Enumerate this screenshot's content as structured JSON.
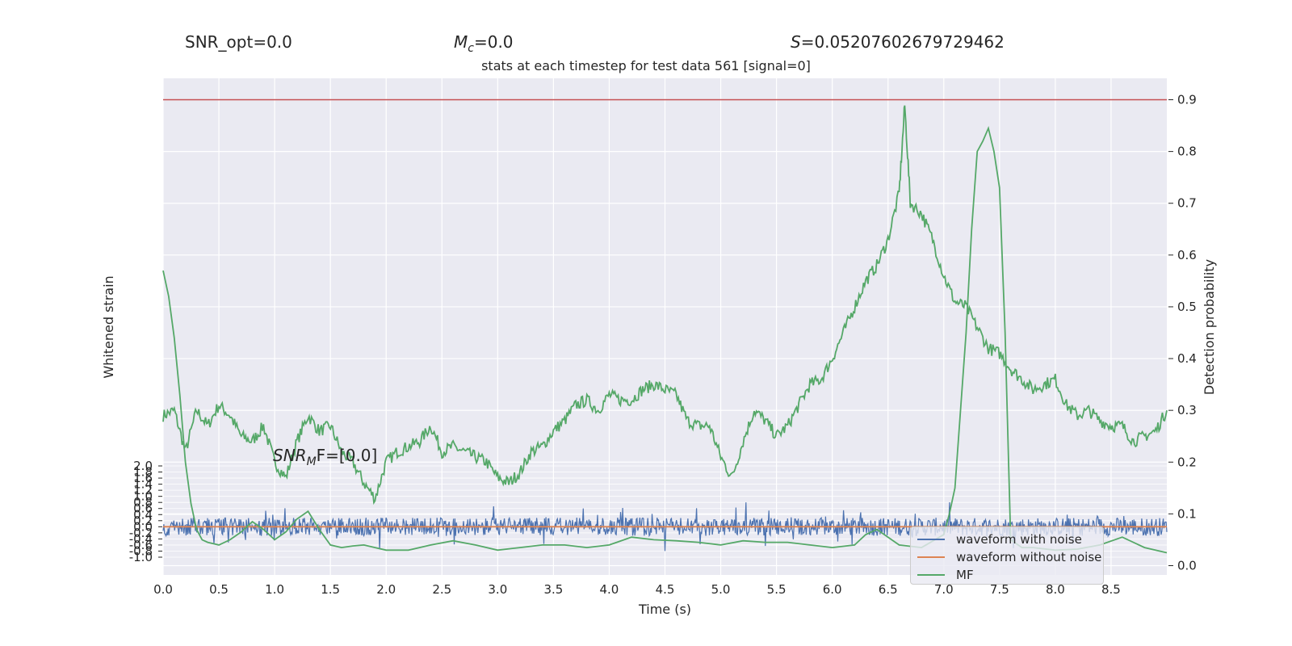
{
  "header": {
    "snr_opt": "SNR_opt=0.0",
    "mc_symbol": "M",
    "mc_sub": "c",
    "mc_value": "=0.0",
    "s_symbol": "S",
    "s_value": "=0.05207602679729462"
  },
  "chart_data": {
    "type": "line",
    "title": "stats at each timestep for test data 561 [signal=0]",
    "annotation": {
      "symbol": "SNR",
      "sub": "M",
      "rest": "F=[0.0]"
    },
    "xlabel": "Time (s)",
    "xlim": [
      0.0,
      9.0
    ],
    "xticks": [
      "0.0",
      "0.5",
      "1.0",
      "1.5",
      "2.0",
      "2.5",
      "3.0",
      "3.5",
      "4.0",
      "4.5",
      "5.0",
      "5.5",
      "6.0",
      "6.5",
      "7.0",
      "7.5",
      "8.0",
      "8.5"
    ],
    "left_axis": {
      "label": "Whitened strain",
      "ylim": [
        -1.0,
        2.0
      ],
      "ticks": [
        "2.0",
        "1.8",
        "1.6",
        "1.4",
        "1.2",
        "1.0",
        "0.8",
        "0.6",
        "0.4",
        "0.2",
        "0.0",
        "-0.2",
        "-0.4",
        "-0.6",
        "-0.8",
        "-1.0"
      ]
    },
    "right_axis": {
      "label": "Detection probability",
      "ylim": [
        0.0,
        0.9
      ],
      "ticks": [
        "0.9",
        "0.8",
        "0.7",
        "0.6",
        "0.5",
        "0.4",
        "0.3",
        "0.2",
        "0.1",
        "0.0"
      ]
    },
    "threshold": 0.9,
    "series": [
      {
        "name": "waveform with noise",
        "color": "#4c72b0",
        "axis": "left",
        "mean": 0.0,
        "amplitude": 0.3,
        "spikes": 0.6
      },
      {
        "name": "waveform without noise",
        "color": "#dd8452",
        "axis": "left",
        "constant": 0.0
      },
      {
        "name": "MF",
        "color": "#55a868",
        "axis": "right",
        "x": [
          0.0,
          0.05,
          0.1,
          0.15,
          0.2,
          0.25,
          0.3,
          0.35,
          0.4,
          0.5,
          0.6,
          0.7,
          0.8,
          0.9,
          1.0,
          1.1,
          1.2,
          1.3,
          1.4,
          1.5,
          1.6,
          1.7,
          1.8,
          1.9,
          2.0,
          2.2,
          2.4,
          2.6,
          2.8,
          3.0,
          3.2,
          3.4,
          3.6,
          3.8,
          4.0,
          4.2,
          4.4,
          4.6,
          4.8,
          5.0,
          5.2,
          5.4,
          5.6,
          5.8,
          6.0,
          6.2,
          6.3,
          6.4,
          6.5,
          6.6,
          6.8,
          7.0,
          7.05,
          7.1,
          7.2,
          7.25,
          7.3,
          7.35,
          7.4,
          7.45,
          7.5,
          7.55,
          7.6,
          7.7,
          7.8,
          8.0,
          8.2,
          8.4,
          8.6,
          8.8,
          9.0
        ],
        "y": [
          0.57,
          0.52,
          0.44,
          0.33,
          0.2,
          0.12,
          0.07,
          0.05,
          0.045,
          0.04,
          0.05,
          0.065,
          0.085,
          0.07,
          0.05,
          0.065,
          0.09,
          0.105,
          0.07,
          0.04,
          0.035,
          0.038,
          0.04,
          0.035,
          0.03,
          0.03,
          0.04,
          0.048,
          0.04,
          0.03,
          0.035,
          0.04,
          0.04,
          0.035,
          0.04,
          0.055,
          0.05,
          0.048,
          0.045,
          0.04,
          0.048,
          0.045,
          0.045,
          0.04,
          0.035,
          0.04,
          0.06,
          0.07,
          0.055,
          0.04,
          0.035,
          0.06,
          0.1,
          0.15,
          0.45,
          0.65,
          0.8,
          0.82,
          0.845,
          0.8,
          0.73,
          0.45,
          0.05,
          0.035,
          0.035,
          0.03,
          0.032,
          0.04,
          0.055,
          0.035,
          0.025
        ]
      },
      {
        "name": "detection probability",
        "color": "#55a868",
        "axis": "right",
        "x": [
          0.0,
          0.1,
          0.2,
          0.3,
          0.4,
          0.5,
          0.6,
          0.7,
          0.8,
          0.9,
          1.0,
          1.1,
          1.2,
          1.3,
          1.4,
          1.5,
          1.6,
          1.7,
          1.8,
          1.9,
          2.0,
          2.1,
          2.2,
          2.3,
          2.4,
          2.5,
          2.6,
          2.7,
          2.8,
          2.9,
          3.0,
          3.1,
          3.2,
          3.3,
          3.4,
          3.5,
          3.6,
          3.7,
          3.8,
          3.9,
          4.0,
          4.1,
          4.2,
          4.3,
          4.4,
          4.5,
          4.6,
          4.7,
          4.8,
          4.9,
          5.0,
          5.1,
          5.2,
          5.3,
          5.4,
          5.5,
          5.6,
          5.7,
          5.8,
          5.9,
          6.0,
          6.1,
          6.2,
          6.3,
          6.4,
          6.5,
          6.6,
          6.65,
          6.7,
          6.8,
          6.9,
          7.0,
          7.1,
          7.2,
          7.3,
          7.4,
          7.5,
          7.6,
          7.7,
          7.8,
          7.9,
          8.0,
          8.1,
          8.2,
          8.3,
          8.4,
          8.5,
          8.6,
          8.7,
          8.8,
          8.9,
          9.0
        ],
        "y": [
          0.29,
          0.3,
          0.22,
          0.3,
          0.27,
          0.31,
          0.29,
          0.25,
          0.24,
          0.27,
          0.2,
          0.17,
          0.24,
          0.29,
          0.26,
          0.27,
          0.22,
          0.2,
          0.16,
          0.13,
          0.2,
          0.22,
          0.23,
          0.24,
          0.27,
          0.22,
          0.23,
          0.22,
          0.21,
          0.2,
          0.17,
          0.16,
          0.18,
          0.22,
          0.23,
          0.26,
          0.28,
          0.31,
          0.32,
          0.3,
          0.33,
          0.32,
          0.32,
          0.34,
          0.35,
          0.34,
          0.33,
          0.28,
          0.27,
          0.27,
          0.21,
          0.17,
          0.24,
          0.3,
          0.28,
          0.25,
          0.27,
          0.31,
          0.35,
          0.36,
          0.4,
          0.45,
          0.5,
          0.55,
          0.58,
          0.63,
          0.72,
          0.89,
          0.7,
          0.68,
          0.63,
          0.56,
          0.51,
          0.5,
          0.46,
          0.42,
          0.41,
          0.38,
          0.36,
          0.34,
          0.35,
          0.36,
          0.31,
          0.29,
          0.3,
          0.28,
          0.27,
          0.27,
          0.24,
          0.25,
          0.26,
          0.3
        ]
      }
    ],
    "legend_position": "lower-right",
    "grid": true
  }
}
